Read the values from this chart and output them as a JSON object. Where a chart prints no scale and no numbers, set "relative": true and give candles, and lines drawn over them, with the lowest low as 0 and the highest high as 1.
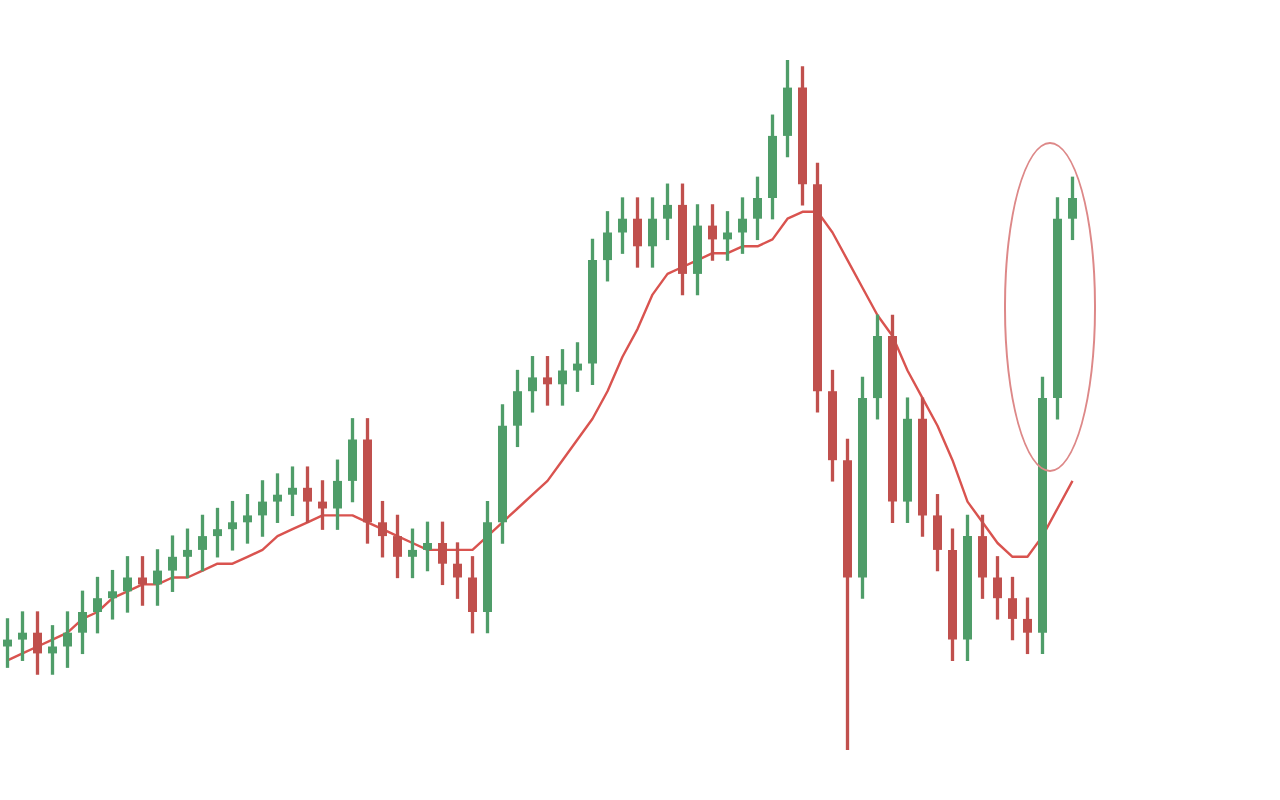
{
  "chart_data": {
    "type": "candlestick",
    "relative": true,
    "grid": false,
    "legend": false,
    "tick_labels": false,
    "categories": [
      null,
      null,
      null,
      null,
      null,
      null,
      null,
      null,
      null,
      null,
      null,
      null,
      null,
      null,
      null,
      null,
      null,
      null,
      null,
      null,
      null,
      null,
      null,
      null,
      null,
      null,
      null,
      null,
      null,
      null,
      null,
      null,
      null,
      null,
      null,
      null,
      null,
      null,
      null,
      null,
      null,
      null,
      null,
      null,
      null,
      null,
      null,
      null,
      null,
      null,
      null,
      null,
      null,
      null,
      null,
      null,
      null,
      null,
      null,
      null,
      null,
      null,
      null,
      null,
      null,
      null,
      null,
      null,
      null,
      null,
      null,
      null
    ],
    "ohlc": [
      [
        0.15,
        0.19,
        0.12,
        0.16
      ],
      [
        0.16,
        0.2,
        0.13,
        0.17
      ],
      [
        0.17,
        0.2,
        0.11,
        0.14
      ],
      [
        0.14,
        0.18,
        0.11,
        0.15
      ],
      [
        0.15,
        0.2,
        0.12,
        0.17
      ],
      [
        0.17,
        0.23,
        0.14,
        0.2
      ],
      [
        0.2,
        0.25,
        0.17,
        0.22
      ],
      [
        0.22,
        0.26,
        0.19,
        0.23
      ],
      [
        0.23,
        0.28,
        0.2,
        0.25
      ],
      [
        0.25,
        0.28,
        0.21,
        0.24
      ],
      [
        0.24,
        0.29,
        0.21,
        0.26
      ],
      [
        0.26,
        0.31,
        0.23,
        0.28
      ],
      [
        0.28,
        0.32,
        0.25,
        0.29
      ],
      [
        0.29,
        0.34,
        0.26,
        0.31
      ],
      [
        0.31,
        0.35,
        0.28,
        0.32
      ],
      [
        0.32,
        0.36,
        0.29,
        0.33
      ],
      [
        0.33,
        0.37,
        0.3,
        0.34
      ],
      [
        0.34,
        0.39,
        0.31,
        0.36
      ],
      [
        0.36,
        0.4,
        0.33,
        0.37
      ],
      [
        0.37,
        0.41,
        0.34,
        0.38
      ],
      [
        0.38,
        0.41,
        0.33,
        0.36
      ],
      [
        0.36,
        0.39,
        0.32,
        0.35
      ],
      [
        0.35,
        0.42,
        0.32,
        0.39
      ],
      [
        0.39,
        0.48,
        0.36,
        0.45
      ],
      [
        0.45,
        0.48,
        0.3,
        0.33
      ],
      [
        0.33,
        0.36,
        0.28,
        0.31
      ],
      [
        0.31,
        0.34,
        0.25,
        0.28
      ],
      [
        0.28,
        0.32,
        0.25,
        0.29
      ],
      [
        0.29,
        0.33,
        0.26,
        0.3
      ],
      [
        0.3,
        0.33,
        0.24,
        0.27
      ],
      [
        0.27,
        0.3,
        0.22,
        0.25
      ],
      [
        0.25,
        0.28,
        0.17,
        0.2
      ],
      [
        0.2,
        0.36,
        0.17,
        0.33
      ],
      [
        0.33,
        0.5,
        0.3,
        0.47
      ],
      [
        0.47,
        0.55,
        0.44,
        0.52
      ],
      [
        0.52,
        0.57,
        0.49,
        0.54
      ],
      [
        0.54,
        0.57,
        0.5,
        0.53
      ],
      [
        0.53,
        0.58,
        0.5,
        0.55
      ],
      [
        0.55,
        0.59,
        0.52,
        0.56
      ],
      [
        0.56,
        0.74,
        0.53,
        0.71
      ],
      [
        0.71,
        0.78,
        0.68,
        0.75
      ],
      [
        0.75,
        0.8,
        0.72,
        0.77
      ],
      [
        0.77,
        0.8,
        0.7,
        0.73
      ],
      [
        0.73,
        0.8,
        0.7,
        0.77
      ],
      [
        0.77,
        0.82,
        0.74,
        0.79
      ],
      [
        0.79,
        0.82,
        0.66,
        0.69
      ],
      [
        0.69,
        0.79,
        0.66,
        0.76
      ],
      [
        0.76,
        0.79,
        0.71,
        0.74
      ],
      [
        0.74,
        0.78,
        0.71,
        0.75
      ],
      [
        0.75,
        0.8,
        0.72,
        0.77
      ],
      [
        0.77,
        0.83,
        0.74,
        0.8
      ],
      [
        0.8,
        0.92,
        0.77,
        0.89
      ],
      [
        0.89,
        1.0,
        0.86,
        0.96
      ],
      [
        0.96,
        0.99,
        0.79,
        0.82
      ],
      [
        0.82,
        0.85,
        0.49,
        0.52
      ],
      [
        0.52,
        0.55,
        0.39,
        0.42
      ],
      [
        0.42,
        0.45,
        0.0,
        0.25
      ],
      [
        0.25,
        0.54,
        0.22,
        0.51
      ],
      [
        0.51,
        0.63,
        0.48,
        0.6
      ],
      [
        0.6,
        0.63,
        0.33,
        0.36
      ],
      [
        0.36,
        0.51,
        0.33,
        0.48
      ],
      [
        0.48,
        0.51,
        0.31,
        0.34
      ],
      [
        0.34,
        0.37,
        0.26,
        0.29
      ],
      [
        0.29,
        0.32,
        0.13,
        0.16
      ],
      [
        0.16,
        0.34,
        0.13,
        0.31
      ],
      [
        0.31,
        0.34,
        0.22,
        0.25
      ],
      [
        0.25,
        0.28,
        0.19,
        0.22
      ],
      [
        0.22,
        0.25,
        0.16,
        0.19
      ],
      [
        0.19,
        0.22,
        0.14,
        0.17
      ],
      [
        0.17,
        0.54,
        0.14,
        0.51
      ],
      [
        0.51,
        0.8,
        0.48,
        0.77
      ],
      [
        0.77,
        0.83,
        0.74,
        0.8
      ]
    ],
    "colors": [
      "#4f9d69",
      "#4f9d69",
      "#c0504d",
      "#4f9d69",
      "#4f9d69",
      "#4f9d69",
      "#4f9d69",
      "#4f9d69",
      "#4f9d69",
      "#c0504d",
      "#4f9d69",
      "#4f9d69",
      "#4f9d69",
      "#4f9d69",
      "#4f9d69",
      "#4f9d69",
      "#4f9d69",
      "#4f9d69",
      "#4f9d69",
      "#4f9d69",
      "#c0504d",
      "#c0504d",
      "#4f9d69",
      "#4f9d69",
      "#c0504d",
      "#c0504d",
      "#c0504d",
      "#4f9d69",
      "#4f9d69",
      "#c0504d",
      "#c0504d",
      "#c0504d",
      "#4f9d69",
      "#4f9d69",
      "#4f9d69",
      "#4f9d69",
      "#c0504d",
      "#4f9d69",
      "#4f9d69",
      "#4f9d69",
      "#4f9d69",
      "#4f9d69",
      "#c0504d",
      "#4f9d69",
      "#4f9d69",
      "#c0504d",
      "#4f9d69",
      "#c0504d",
      "#4f9d69",
      "#4f9d69",
      "#4f9d69",
      "#4f9d69",
      "#4f9d69",
      "#c0504d",
      "#c0504d",
      "#c0504d",
      "#c0504d",
      "#4f9d69",
      "#4f9d69",
      "#c0504d",
      "#4f9d69",
      "#c0504d",
      "#c0504d",
      "#c0504d",
      "#4f9d69",
      "#c0504d",
      "#c0504d",
      "#c0504d",
      "#c0504d",
      "#4f9d69",
      "#4f9d69",
      "#4f9d69"
    ],
    "series": [
      {
        "type": "line",
        "color": "#d9534f",
        "values": [
          0.13,
          0.14,
          0.15,
          0.16,
          0.17,
          0.19,
          0.2,
          0.22,
          0.23,
          0.24,
          0.24,
          0.25,
          0.25,
          0.26,
          0.27,
          0.27,
          0.28,
          0.29,
          0.31,
          0.32,
          0.33,
          0.34,
          0.34,
          0.34,
          0.33,
          0.32,
          0.31,
          0.3,
          0.29,
          0.29,
          0.29,
          0.29,
          0.31,
          0.33,
          0.35,
          0.37,
          0.39,
          0.42,
          0.45,
          0.48,
          0.52,
          0.57,
          0.61,
          0.66,
          0.69,
          0.7,
          0.71,
          0.72,
          0.72,
          0.73,
          0.73,
          0.74,
          0.77,
          0.78,
          0.78,
          0.75,
          0.71,
          0.67,
          0.63,
          0.6,
          0.55,
          0.51,
          0.47,
          0.42,
          0.36,
          0.33,
          0.3,
          0.28,
          0.28,
          0.31,
          0.35,
          0.39
        ]
      }
    ]
  }
}
